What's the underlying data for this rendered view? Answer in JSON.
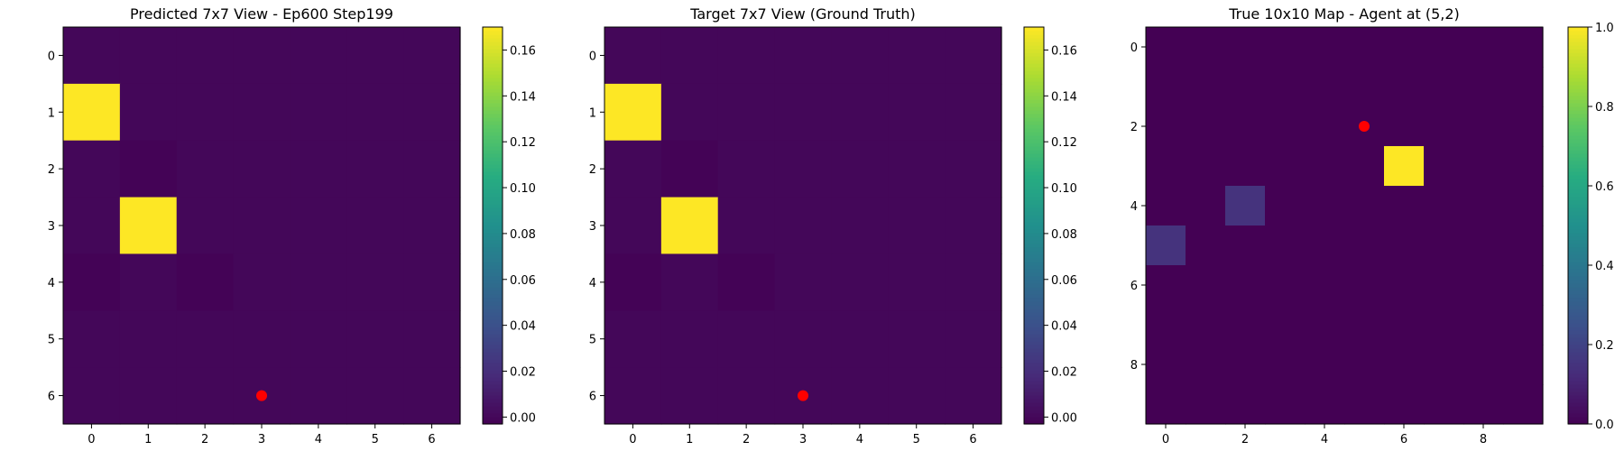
{
  "chart_data": [
    {
      "type": "heatmap",
      "title": "Predicted 7x7 View - Ep600 Step199",
      "xlabel": "",
      "ylabel": "",
      "rows": 7,
      "cols": 7,
      "x_ticks": [
        0,
        1,
        2,
        3,
        4,
        5,
        6
      ],
      "y_ticks": [
        0,
        1,
        2,
        3,
        4,
        5,
        6
      ],
      "values": [
        [
          0.0,
          0.0,
          0.0,
          0.0,
          0.0,
          0.0,
          0.0
        ],
        [
          0.17,
          0.0,
          0.0,
          0.0,
          0.0,
          0.0,
          0.0
        ],
        [
          0.0,
          -0.002,
          0.0,
          0.0,
          0.0,
          0.0,
          0.0
        ],
        [
          0.0,
          0.17,
          0.0,
          0.0,
          0.0,
          0.0,
          0.0
        ],
        [
          -0.002,
          0.0,
          -0.002,
          0.0,
          0.0,
          0.0,
          0.0
        ],
        [
          0.0,
          0.0,
          0.0,
          0.0,
          0.0,
          0.0,
          0.0
        ],
        [
          0.0,
          0.0,
          0.0,
          0.0,
          0.0,
          0.0,
          0.0
        ]
      ],
      "vmin": -0.003,
      "vmax": 0.17,
      "colormap": "viridis",
      "colorbar_ticks": [
        "0.00",
        "0.02",
        "0.04",
        "0.06",
        "0.08",
        "0.10",
        "0.12",
        "0.14",
        "0.16"
      ],
      "agent_marker": {
        "x": 3,
        "y": 6,
        "color": "#ff0000"
      }
    },
    {
      "type": "heatmap",
      "title": "Target 7x7 View (Ground Truth)",
      "xlabel": "",
      "ylabel": "",
      "rows": 7,
      "cols": 7,
      "x_ticks": [
        0,
        1,
        2,
        3,
        4,
        5,
        6
      ],
      "y_ticks": [
        0,
        1,
        2,
        3,
        4,
        5,
        6
      ],
      "values": [
        [
          0.0,
          0.0,
          0.0,
          0.0,
          0.0,
          0.0,
          0.0
        ],
        [
          0.17,
          0.0,
          0.0,
          0.0,
          0.0,
          0.0,
          0.0
        ],
        [
          0.0,
          -0.002,
          0.0,
          0.0,
          0.0,
          0.0,
          0.0
        ],
        [
          0.0,
          0.17,
          0.0,
          0.0,
          0.0,
          0.0,
          0.0
        ],
        [
          -0.002,
          0.0,
          -0.002,
          0.0,
          0.0,
          0.0,
          0.0
        ],
        [
          0.0,
          0.0,
          0.0,
          0.0,
          0.0,
          0.0,
          0.0
        ],
        [
          0.0,
          0.0,
          0.0,
          0.0,
          0.0,
          0.0,
          0.0
        ]
      ],
      "vmin": -0.003,
      "vmax": 0.17,
      "colormap": "viridis",
      "colorbar_ticks": [
        "0.00",
        "0.02",
        "0.04",
        "0.06",
        "0.08",
        "0.10",
        "0.12",
        "0.14",
        "0.16"
      ],
      "agent_marker": {
        "x": 3,
        "y": 6,
        "color": "#ff0000"
      }
    },
    {
      "type": "heatmap",
      "title": "True 10x10 Map - Agent at (5,2)",
      "xlabel": "",
      "ylabel": "",
      "rows": 10,
      "cols": 10,
      "x_ticks": [
        0,
        2,
        4,
        6,
        8
      ],
      "y_ticks": [
        0,
        2,
        4,
        6,
        8
      ],
      "values": [
        [
          0,
          0,
          0,
          0,
          0,
          0,
          0,
          0,
          0,
          0
        ],
        [
          0,
          0,
          0,
          0,
          0,
          0,
          0,
          0,
          0,
          0
        ],
        [
          0,
          0,
          0,
          0,
          0,
          0,
          0,
          0,
          0,
          0
        ],
        [
          0,
          0,
          0,
          0,
          0,
          0,
          1.0,
          0,
          0,
          0
        ],
        [
          0,
          0,
          0.15,
          0,
          0,
          0,
          0,
          0,
          0,
          0
        ],
        [
          0.15,
          0,
          0,
          0,
          0,
          0,
          0,
          0,
          0,
          0
        ],
        [
          0,
          0,
          0,
          0,
          0,
          0,
          0,
          0,
          0,
          0
        ],
        [
          0,
          0,
          0,
          0,
          0,
          0,
          0,
          0,
          0,
          0
        ],
        [
          0,
          0,
          0,
          0,
          0,
          0,
          0,
          0,
          0,
          0
        ],
        [
          0,
          0,
          0,
          0,
          0,
          0,
          0,
          0,
          0,
          0
        ]
      ],
      "vmin": 0.0,
      "vmax": 1.0,
      "colormap": "viridis",
      "colorbar_ticks": [
        "0.0",
        "0.2",
        "0.4",
        "0.6",
        "0.8",
        "1.0"
      ],
      "agent_marker": {
        "x": 5,
        "y": 2,
        "color": "#ff0000"
      }
    }
  ]
}
